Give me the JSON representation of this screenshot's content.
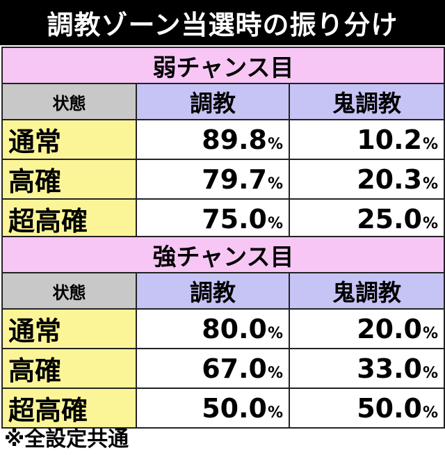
{
  "title": "調教ゾーン当選時の振り分け",
  "tables": [
    {
      "section": "弱チャンス目",
      "headers": {
        "state": "状態",
        "col1": "調教",
        "col2": "鬼調教"
      },
      "rows": [
        {
          "label": "通常",
          "col1": "89.8",
          "col2": "10.2"
        },
        {
          "label": "高確",
          "col1": "79.7",
          "col2": "20.3"
        },
        {
          "label": "超高確",
          "col1": "75.0",
          "col2": "25.0"
        }
      ]
    },
    {
      "section": "強チャンス目",
      "headers": {
        "state": "状態",
        "col1": "調教",
        "col2": "鬼調教"
      },
      "rows": [
        {
          "label": "通常",
          "col1": "80.0",
          "col2": "20.0"
        },
        {
          "label": "高確",
          "col1": "67.0",
          "col2": "33.0"
        },
        {
          "label": "超高確",
          "col1": "50.0",
          "col2": "50.0"
        }
      ]
    }
  ],
  "percent_sign": "%",
  "footnote": "※全設定共通",
  "colors": {
    "title_bg": "#000000",
    "section_bg": "#f7c6f5",
    "state_header_bg": "#c8c8c8",
    "value_header_bg": "#c6c3f5",
    "row_label_bg": "#fbf598"
  }
}
